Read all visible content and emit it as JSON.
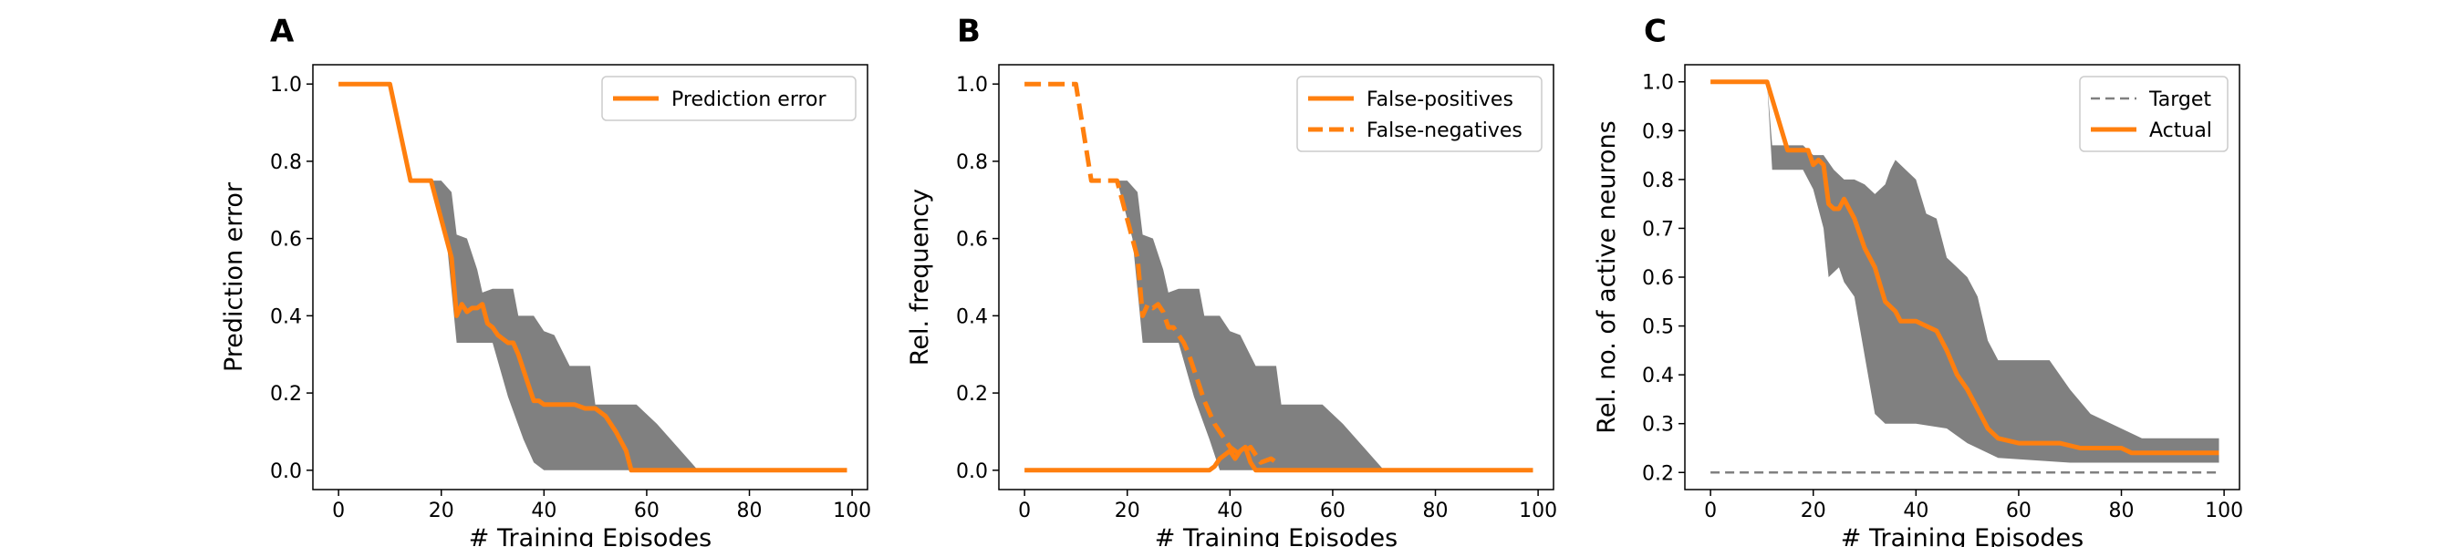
{
  "colors": {
    "orange": "#ff7f0e",
    "band": "#808080",
    "target": "#808080"
  },
  "chart_data": [
    {
      "type": "line",
      "panel_label": "A",
      "xlabel": "# Training Episodes",
      "ylabel": "Prediction error",
      "xlim": [
        -5,
        103
      ],
      "ylim": [
        -0.05,
        1.05
      ],
      "xticks": [
        0,
        20,
        40,
        60,
        80,
        100
      ],
      "yticks": [
        0.0,
        0.2,
        0.4,
        0.6,
        0.8,
        1.0
      ],
      "ytick_labels": [
        "0.0",
        "0.2",
        "0.4",
        "0.6",
        "0.8",
        "1.0"
      ],
      "legend": {
        "position": "upper right",
        "entries": [
          "Prediction error"
        ]
      },
      "band": {
        "upper": [
          [
            18,
            0.75
          ],
          [
            20,
            0.75
          ],
          [
            22,
            0.72
          ],
          [
            23,
            0.61
          ],
          [
            25,
            0.6
          ],
          [
            27,
            0.52
          ],
          [
            28,
            0.46
          ],
          [
            30,
            0.47
          ],
          [
            34,
            0.47
          ],
          [
            35,
            0.4
          ],
          [
            38,
            0.4
          ],
          [
            40,
            0.36
          ],
          [
            42,
            0.35
          ],
          [
            45,
            0.27
          ],
          [
            49,
            0.27
          ],
          [
            50,
            0.17
          ],
          [
            58,
            0.17
          ],
          [
            62,
            0.12
          ],
          [
            66,
            0.06
          ],
          [
            70,
            0.0
          ]
        ],
        "lower": [
          [
            18,
            0.75
          ],
          [
            21,
            0.6
          ],
          [
            23,
            0.33
          ],
          [
            28,
            0.33
          ],
          [
            30,
            0.33
          ],
          [
            33,
            0.19
          ],
          [
            36,
            0.08
          ],
          [
            38,
            0.02
          ],
          [
            40,
            0.0
          ],
          [
            70,
            0.0
          ]
        ]
      },
      "series": [
        {
          "name": "Prediction error",
          "style": "solid",
          "x": [
            0,
            10,
            14,
            18,
            20,
            22,
            23,
            24,
            25,
            26,
            27,
            28,
            29,
            30,
            31,
            33,
            34,
            35,
            36,
            37,
            38,
            39,
            40,
            42,
            44,
            46,
            48,
            50,
            52,
            54,
            56,
            57,
            60,
            70,
            80,
            90,
            99
          ],
          "y": [
            1.0,
            1.0,
            0.75,
            0.75,
            0.65,
            0.55,
            0.4,
            0.43,
            0.41,
            0.42,
            0.42,
            0.43,
            0.38,
            0.37,
            0.35,
            0.33,
            0.33,
            0.3,
            0.26,
            0.22,
            0.18,
            0.18,
            0.17,
            0.17,
            0.17,
            0.17,
            0.16,
            0.16,
            0.14,
            0.1,
            0.05,
            0.0,
            0.0,
            0.0,
            0.0,
            0.0,
            0.0
          ]
        }
      ]
    },
    {
      "type": "line",
      "panel_label": "B",
      "xlabel": "# Training Episodes",
      "ylabel": "Rel. frequency",
      "xlim": [
        -5,
        103
      ],
      "ylim": [
        -0.05,
        1.05
      ],
      "xticks": [
        0,
        20,
        40,
        60,
        80,
        100
      ],
      "yticks": [
        0.0,
        0.2,
        0.4,
        0.6,
        0.8,
        1.0
      ],
      "ytick_labels": [
        "0.0",
        "0.2",
        "0.4",
        "0.6",
        "0.8",
        "1.0"
      ],
      "legend": {
        "position": "upper right",
        "entries": [
          "False-positives",
          "False-negatives"
        ]
      },
      "band": {
        "upper": [
          [
            18,
            0.75
          ],
          [
            20,
            0.75
          ],
          [
            22,
            0.72
          ],
          [
            23,
            0.61
          ],
          [
            25,
            0.6
          ],
          [
            27,
            0.52
          ],
          [
            28,
            0.46
          ],
          [
            30,
            0.47
          ],
          [
            34,
            0.47
          ],
          [
            35,
            0.4
          ],
          [
            38,
            0.4
          ],
          [
            40,
            0.36
          ],
          [
            42,
            0.35
          ],
          [
            45,
            0.27
          ],
          [
            49,
            0.27
          ],
          [
            50,
            0.17
          ],
          [
            58,
            0.17
          ],
          [
            62,
            0.12
          ],
          [
            66,
            0.06
          ],
          [
            70,
            0.0
          ]
        ],
        "lower": [
          [
            18,
            0.75
          ],
          [
            21,
            0.6
          ],
          [
            23,
            0.33
          ],
          [
            28,
            0.33
          ],
          [
            30,
            0.33
          ],
          [
            33,
            0.19
          ],
          [
            36,
            0.08
          ],
          [
            38,
            0.0
          ],
          [
            70,
            0.0
          ]
        ]
      },
      "series": [
        {
          "name": "False-positives",
          "style": "solid",
          "x": [
            0,
            10,
            20,
            30,
            35,
            36,
            37,
            38,
            39,
            40,
            41,
            42,
            43,
            44,
            45,
            46,
            50,
            60,
            70,
            80,
            90,
            99
          ],
          "y": [
            0.0,
            0.0,
            0.0,
            0.0,
            0.0,
            0.0,
            0.01,
            0.03,
            0.04,
            0.05,
            0.03,
            0.05,
            0.06,
            0.02,
            0.0,
            0.0,
            0.0,
            0.0,
            0.0,
            0.0,
            0.0,
            0.0
          ]
        },
        {
          "name": "False-negatives",
          "style": "dashed",
          "x": [
            0,
            10,
            13,
            18,
            20,
            22,
            23,
            24,
            25,
            26,
            27,
            28,
            29,
            30,
            31,
            32,
            33,
            34,
            35,
            36,
            37,
            38,
            39,
            40,
            42,
            44,
            46,
            48,
            49
          ],
          "y": [
            1.0,
            1.0,
            0.75,
            0.75,
            0.65,
            0.55,
            0.4,
            0.43,
            0.42,
            0.43,
            0.41,
            0.37,
            0.37,
            0.35,
            0.33,
            0.3,
            0.26,
            0.22,
            0.18,
            0.15,
            0.12,
            0.1,
            0.08,
            0.06,
            0.04,
            0.06,
            0.02,
            0.03,
            0.02
          ]
        }
      ]
    },
    {
      "type": "line",
      "panel_label": "C",
      "xlabel": "# Training Episodes",
      "ylabel": "Rel. no. of active neurons",
      "xlim": [
        -5,
        103
      ],
      "ylim": [
        0.165,
        1.035
      ],
      "xticks": [
        0,
        20,
        40,
        60,
        80,
        100
      ],
      "yticks": [
        0.2,
        0.3,
        0.4,
        0.5,
        0.6,
        0.7,
        0.8,
        0.9,
        1.0
      ],
      "ytick_labels": [
        "0.2",
        "0.3",
        "0.4",
        "0.5",
        "0.6",
        "0.7",
        "0.8",
        "0.9",
        "1.0"
      ],
      "legend": {
        "position": "upper right",
        "entries": [
          "Target",
          "Actual"
        ]
      },
      "band": {
        "upper": [
          [
            11,
            1.0
          ],
          [
            12,
            0.87
          ],
          [
            18,
            0.87
          ],
          [
            20,
            0.85
          ],
          [
            22,
            0.85
          ],
          [
            24,
            0.82
          ],
          [
            26,
            0.8
          ],
          [
            28,
            0.8
          ],
          [
            30,
            0.79
          ],
          [
            32,
            0.77
          ],
          [
            34,
            0.79
          ],
          [
            35,
            0.82
          ],
          [
            36,
            0.84
          ],
          [
            38,
            0.82
          ],
          [
            40,
            0.8
          ],
          [
            42,
            0.73
          ],
          [
            44,
            0.72
          ],
          [
            46,
            0.64
          ],
          [
            48,
            0.62
          ],
          [
            50,
            0.6
          ],
          [
            52,
            0.56
          ],
          [
            54,
            0.47
          ],
          [
            56,
            0.43
          ],
          [
            66,
            0.43
          ],
          [
            70,
            0.37
          ],
          [
            74,
            0.32
          ],
          [
            78,
            0.3
          ],
          [
            84,
            0.27
          ],
          [
            99,
            0.27
          ]
        ],
        "lower": [
          [
            11,
            1.0
          ],
          [
            12,
            0.82
          ],
          [
            18,
            0.82
          ],
          [
            20,
            0.78
          ],
          [
            22,
            0.7
          ],
          [
            23,
            0.6
          ],
          [
            25,
            0.62
          ],
          [
            26,
            0.59
          ],
          [
            28,
            0.56
          ],
          [
            30,
            0.44
          ],
          [
            32,
            0.32
          ],
          [
            34,
            0.3
          ],
          [
            40,
            0.3
          ],
          [
            46,
            0.29
          ],
          [
            50,
            0.26
          ],
          [
            56,
            0.23
          ],
          [
            70,
            0.22
          ],
          [
            84,
            0.22
          ],
          [
            99,
            0.22
          ]
        ]
      },
      "series": [
        {
          "name": "Target",
          "style": "dashed",
          "x": [
            0,
            99
          ],
          "y": [
            0.2,
            0.2
          ]
        },
        {
          "name": "Actual",
          "style": "solid",
          "x": [
            0,
            11,
            15,
            19,
            20,
            21,
            22,
            23,
            24,
            25,
            26,
            27,
            28,
            30,
            32,
            34,
            36,
            37,
            38,
            40,
            42,
            44,
            46,
            48,
            50,
            52,
            54,
            56,
            60,
            64,
            68,
            72,
            76,
            80,
            82,
            90,
            99
          ],
          "y": [
            1.0,
            1.0,
            0.86,
            0.86,
            0.83,
            0.84,
            0.83,
            0.75,
            0.74,
            0.74,
            0.76,
            0.74,
            0.72,
            0.66,
            0.62,
            0.55,
            0.53,
            0.51,
            0.51,
            0.51,
            0.5,
            0.49,
            0.45,
            0.4,
            0.37,
            0.33,
            0.29,
            0.27,
            0.26,
            0.26,
            0.26,
            0.25,
            0.25,
            0.25,
            0.24,
            0.24,
            0.24
          ]
        }
      ]
    }
  ]
}
